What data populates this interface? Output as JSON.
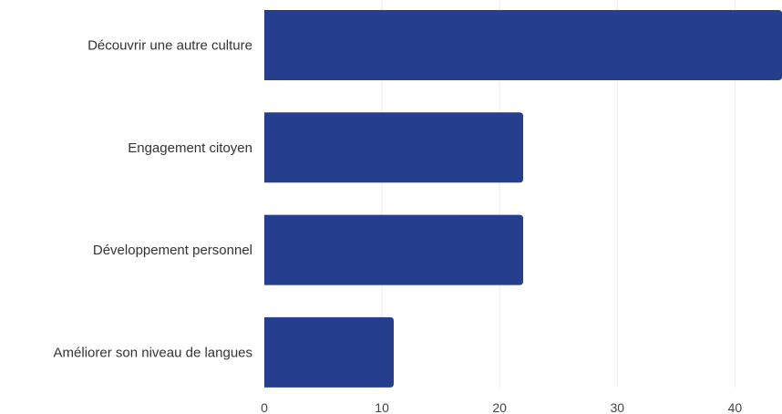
{
  "chart_data": {
    "type": "bar",
    "orientation": "horizontal",
    "categories": [
      "Découvrir une autre culture",
      "Engagement citoyen",
      "Développement personnel",
      "Améliorer son niveau de langues"
    ],
    "values": [
      44,
      22,
      22,
      11
    ],
    "xlim": [
      0,
      44
    ],
    "x_ticks": [
      0,
      10,
      20,
      30,
      40
    ],
    "tick_labels": [
      "0",
      "10",
      "20",
      "30",
      "40"
    ],
    "grid": true,
    "bar_color": "#253e8e",
    "title": "",
    "xlabel": "",
    "ylabel": ""
  }
}
